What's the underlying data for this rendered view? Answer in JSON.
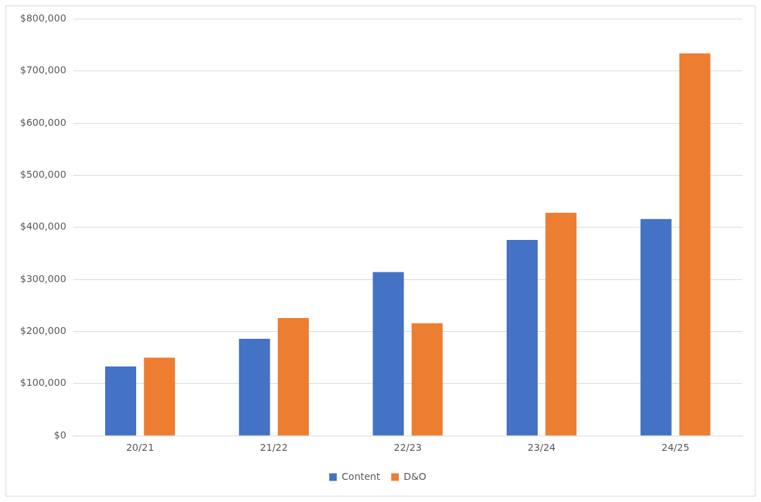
{
  "chart_data": {
    "type": "bar",
    "categories": [
      "20/21",
      "21/22",
      "22/23",
      "23/24",
      "24/25"
    ],
    "series": [
      {
        "name": "Content",
        "color": "#4472c4",
        "values": [
          133000,
          186000,
          314000,
          376000,
          416000
        ]
      },
      {
        "name": "D&O",
        "color": "#ed7d31",
        "values": [
          150000,
          226000,
          216000,
          428000,
          734000
        ]
      }
    ],
    "ylim": [
      0,
      800000
    ],
    "yticks": [
      {
        "value": 0,
        "label": "$0"
      },
      {
        "value": 100000,
        "label": "$100,000"
      },
      {
        "value": 200000,
        "label": "$200,000"
      },
      {
        "value": 300000,
        "label": "$300,000"
      },
      {
        "value": 400000,
        "label": "$400,000"
      },
      {
        "value": 500000,
        "label": "$500,000"
      },
      {
        "value": 600000,
        "label": "$600,000"
      },
      {
        "value": 700000,
        "label": "$700,000"
      },
      {
        "value": 800000,
        "label": "$800,000"
      }
    ],
    "grid": "y",
    "legend": "bottom"
  }
}
